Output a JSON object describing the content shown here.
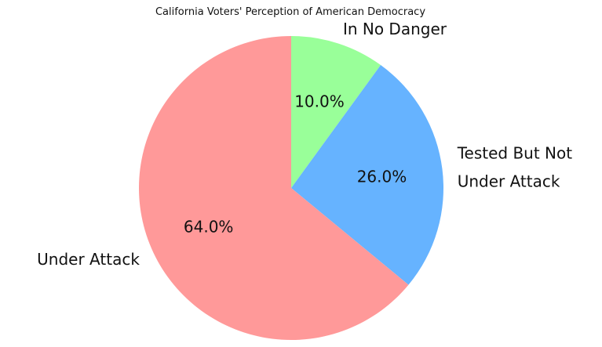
{
  "chart_data": {
    "type": "pie",
    "title": "California Voters' Perception of American Democracy",
    "categories": [
      "In No Danger",
      "Tested But Not Under Attack",
      "Under Attack"
    ],
    "values": [
      10.0,
      26.0,
      64.0
    ],
    "value_labels": [
      "10.0%",
      "26.0%",
      "64.0%"
    ],
    "label_lines": [
      [
        "In No Danger"
      ],
      [
        "Tested But Not",
        "Under Attack"
      ],
      [
        "Under Attack"
      ]
    ],
    "colors": [
      "#99ff99",
      "#66b3ff",
      "#ff9999"
    ],
    "start_angle": 90,
    "direction": "clockwise",
    "legend": "none"
  }
}
